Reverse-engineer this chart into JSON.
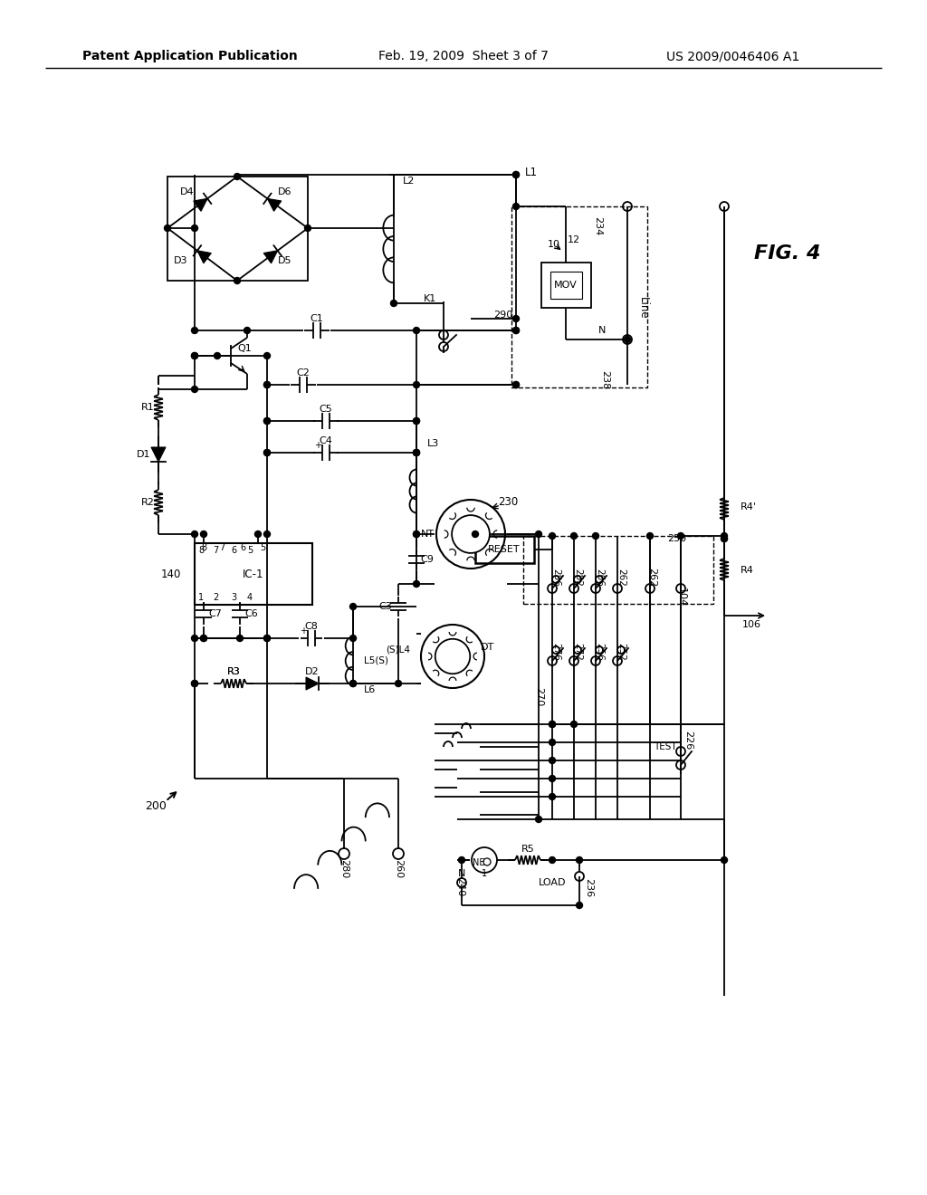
{
  "bg_color": "#ffffff",
  "header_left": "Patent Application Publication",
  "header_center": "Feb. 19, 2009  Sheet 3 of 7",
  "header_right": "US 2009/0046406 A1"
}
